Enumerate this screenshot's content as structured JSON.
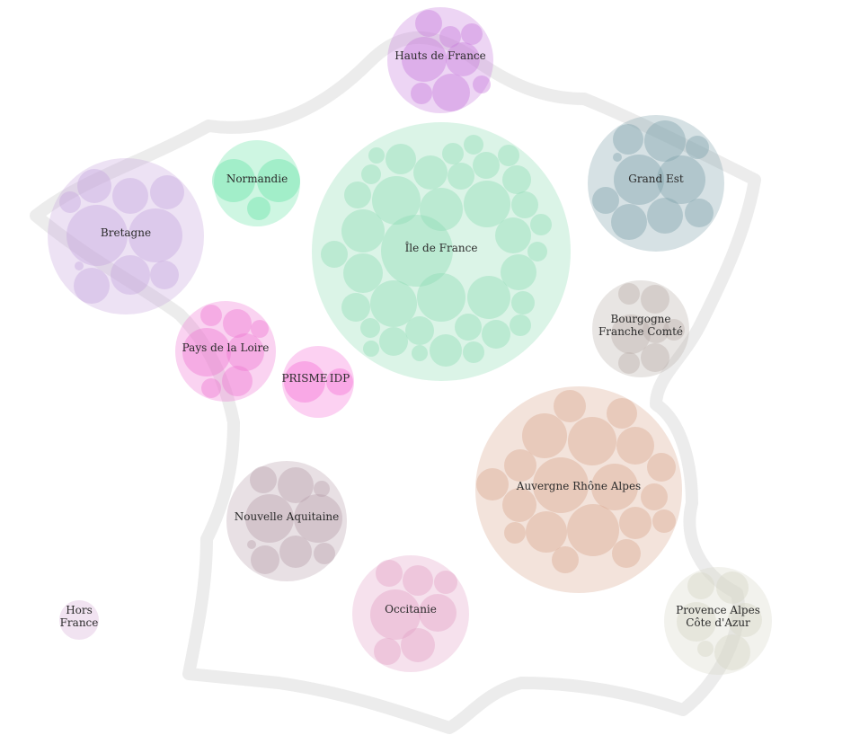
{
  "chart_data": {
    "type": "bubble-pack",
    "background_shape": "france-outline",
    "regions": [
      {
        "key": "hauts_de_france",
        "lines": [
          "Hauts de France"
        ],
        "color": "#c77ddc"
      },
      {
        "key": "normandie",
        "lines": [
          "Normandie"
        ],
        "color": "#66e3a6"
      },
      {
        "key": "ile_de_france",
        "lines": [
          "Île de France"
        ],
        "color": "#8fdcb5"
      },
      {
        "key": "grand_est",
        "lines": [
          "Grand Est"
        ],
        "color": "#7fa3ab"
      },
      {
        "key": "bretagne",
        "lines": [
          "Bretagne"
        ],
        "color": "#c6a6de"
      },
      {
        "key": "pays_de_la_loire",
        "lines": [
          "Pays de la Loire"
        ],
        "color": "#ee77d2"
      },
      {
        "key": "prisme",
        "lines": [
          "PRISME"
        ],
        "color": "#f56fd7"
      },
      {
        "key": "idp",
        "lines": [
          "IDP"
        ],
        "color": "#f56fd7"
      },
      {
        "key": "bourgogne_franche_comte",
        "lines": [
          "Bourgogne",
          "Franche Comté"
        ],
        "color": "#b9aea9"
      },
      {
        "key": "auvergne_rhone_alpes",
        "lines": [
          "Auvergne Rhône Alpes"
        ],
        "color": "#d9a88e"
      },
      {
        "key": "nouvelle_aquitaine",
        "lines": [
          "Nouvelle Aquitaine"
        ],
        "color": "#b89fab"
      },
      {
        "key": "occitanie",
        "lines": [
          "Occitanie"
        ],
        "color": "#e3a3c6"
      },
      {
        "key": "hors_france",
        "lines": [
          "Hors",
          "France"
        ],
        "color": "#d3a9d3"
      },
      {
        "key": "provence_alpes_cote_dazur",
        "lines": [
          "Provence Alpes",
          "Côte d'Azur"
        ],
        "color": "#d7d6c6"
      }
    ]
  }
}
